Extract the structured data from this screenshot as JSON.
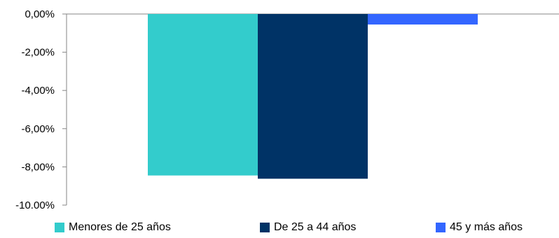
{
  "chart_data": {
    "type": "bar",
    "categories": [
      ""
    ],
    "series": [
      {
        "name": "Menores de 25 años",
        "values": [
          -8.45
        ],
        "color": "#33CCCC"
      },
      {
        "name": "De 25 a 44 años",
        "values": [
          -8.62
        ],
        "color": "#003366"
      },
      {
        "name": "45 y más años",
        "values": [
          -0.55
        ],
        "color": "#3366FF"
      }
    ],
    "ylim": [
      -10,
      0
    ],
    "yticks": [
      0,
      -2,
      -4,
      -6,
      -8,
      -10
    ],
    "ytick_labels": [
      "0,00%",
      "-2,00%",
      "-4,00%",
      "-6,00%",
      "-8,00%",
      "-10.00%"
    ],
    "title": "",
    "xlabel": "",
    "ylabel": "",
    "grid": false,
    "legend_position": "bottom"
  }
}
